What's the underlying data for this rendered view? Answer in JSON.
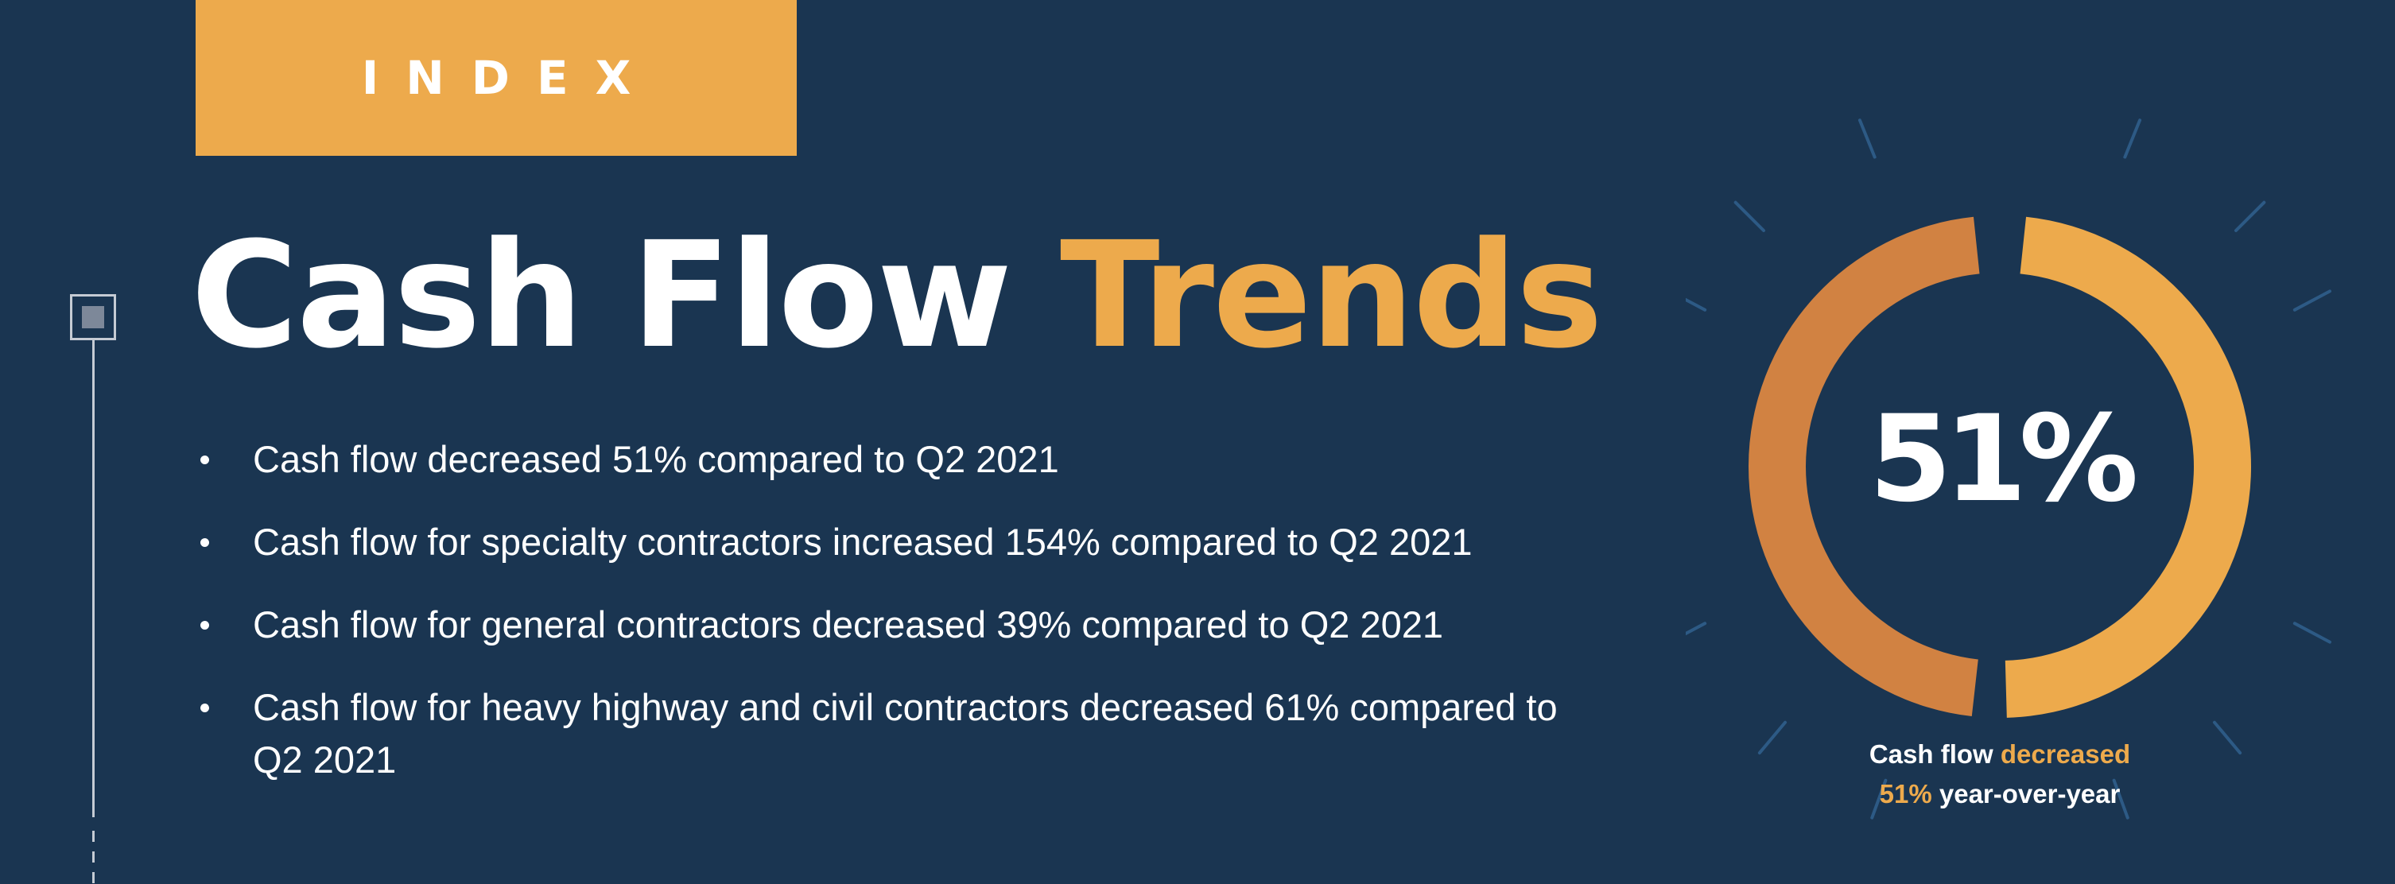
{
  "banner": {
    "label": "INDEX"
  },
  "title": {
    "part1": "Cash Flow",
    "part2": "Trends"
  },
  "bullets": [
    "Cash flow decreased 51% compared to Q2 2021",
    "Cash flow for specialty contractors increased 154% compared to Q2 2021",
    "Cash flow for general contractors decreased 39% compared to Q2 2021",
    "Cash flow for heavy highway and civil contractors decreased 61% compared to Q2 2021"
  ],
  "donut": {
    "value_text": "51%",
    "percent": 51,
    "colors": {
      "filled": "#d18242",
      "remaining": "#edaa4c",
      "accent": "#edaa4c",
      "background": "#1a3551"
    },
    "caption": {
      "part1": "Cash flow",
      "part2": "decreased",
      "part3": "51%",
      "part4": "year-over-year"
    }
  }
}
